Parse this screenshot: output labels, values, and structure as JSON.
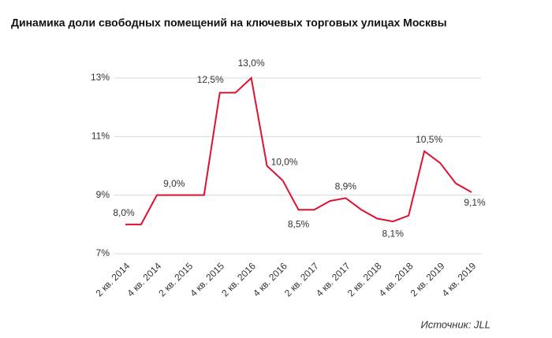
{
  "chart_data": {
    "type": "line",
    "title": "Динамика доли свободных помещений на ключевых торговых улицах Москвы",
    "source": "Источник: JLL",
    "categories": [
      "2 кв. 2014",
      null,
      "4 кв. 2014",
      null,
      "2 кв. 2015",
      null,
      "4 кв. 2015",
      null,
      "2 кв. 2016",
      null,
      "4 кв. 2016",
      null,
      "2 кв. 2017",
      null,
      "4 кв. 2017",
      null,
      "2 кв. 2018",
      null,
      "4 кв. 2018",
      null,
      "2 кв. 2019",
      null,
      "4 кв. 2019"
    ],
    "values": [
      8.0,
      8.0,
      9.0,
      9.0,
      9.0,
      9.0,
      12.5,
      12.5,
      13.0,
      10.0,
      9.5,
      8.5,
      8.5,
      8.8,
      8.9,
      8.5,
      8.2,
      8.1,
      8.3,
      10.5,
      10.1,
      9.4,
      9.1
    ],
    "value_labels": [
      "8,0%",
      null,
      null,
      null,
      "9,0%",
      null,
      "12,5%",
      null,
      "13,0%",
      "10,0%",
      null,
      "8,5%",
      null,
      null,
      "8,9%",
      null,
      null,
      "8,1%",
      null,
      "10,5%",
      null,
      null,
      "9,1%"
    ],
    "color": "#e0102f",
    "ylim": [
      7,
      13
    ],
    "yticks": [
      {
        "value": 7,
        "label": "7%"
      },
      {
        "value": 9,
        "label": "9%"
      },
      {
        "value": 11,
        "label": "11%"
      },
      {
        "value": 13,
        "label": "13%"
      }
    ],
    "grid": true
  }
}
